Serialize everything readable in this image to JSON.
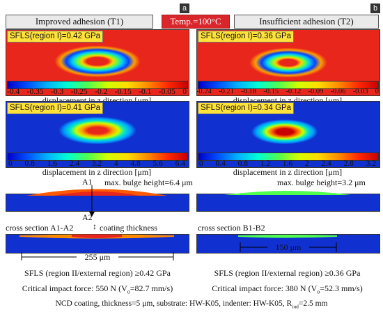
{
  "header": {
    "left_label": "Improved adhesion (T1)",
    "temp_label": "Temp.=100°C",
    "right_label": "Insufficient adhesion (T2)",
    "letter_a": "a",
    "letter_b": "b"
  },
  "colors": {
    "temp_bg": "#d9262b",
    "sfls_bg": "#ffe23a",
    "field_red": "#e8261c",
    "field_blue": "#1030d0"
  },
  "panels": {
    "top_left": {
      "sfls": "SFLS(region I)=0.42 GPa",
      "ticks": [
        "-0.4",
        "-0.35",
        "-0.3",
        "-0.25",
        "-0.2",
        "-0.15",
        "-0.1",
        "-0.05",
        "0"
      ],
      "axis_label": "displacement in z direction [μm]"
    },
    "top_right": {
      "sfls": "SFLS(region I)=0.36 GPa",
      "ticks": [
        "-0.24",
        "-0.21",
        "-0.18",
        "-0.15",
        "-0.12",
        "-0.09",
        "-0.06",
        "-0.03",
        "0"
      ],
      "axis_label": "displacement in z direction [μm]"
    },
    "mid_left": {
      "sfls": "SFLS(region I)=0.41 GPa",
      "ticks": [
        "0",
        "0.8",
        "1.6",
        "2.4",
        "3.2",
        "4",
        "4.8",
        "5.6",
        "6.4"
      ],
      "axis_label": "displacement in z direction [μm]"
    },
    "mid_right": {
      "sfls": "SFLS(region I)=0.34 GPa",
      "ticks": [
        "0",
        "0.4",
        "0.8",
        "1.2",
        "1.6",
        "2",
        "2.4",
        "2.8",
        "3.2"
      ],
      "axis_label": "displacement in z direction [μm]"
    }
  },
  "bulge": {
    "left": "max. bulge height=6.4 μm",
    "right": "max. bulge height=3.2 μm",
    "a1": "A1",
    "a2": "A2"
  },
  "cross": {
    "left_label": "cross section A1-A2",
    "coating_label": "coating thickness",
    "right_label": "cross section B1-B2",
    "left_width": "255 μm",
    "right_width": "150 μm"
  },
  "results": {
    "left_sfls2": "SFLS (region II/external region) ≥0.42 GPa",
    "right_sfls2": "SFLS (region II/external region) ≥0.36 GPa",
    "left_force_prefix": "Critical impact force: 550 N (V",
    "left_force_sub": "o",
    "left_force_suffix": "=82.7 mm/s)",
    "right_force_prefix": "Critical impact force: 380 N (V",
    "right_force_sub": "o",
    "right_force_suffix": "=52.3 mm/s)"
  },
  "footer": {
    "prefix": "NCD coating, thickness=5 μm, substrate: HW-K05, indenter: HW-K05, R",
    "sub": "ind",
    "suffix": "=2.5 mm"
  }
}
